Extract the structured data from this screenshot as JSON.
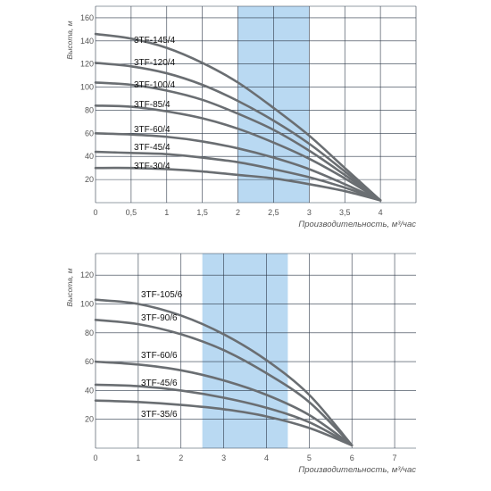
{
  "colors": {
    "curve": "#6a6e72",
    "grid": "#2f3a4a",
    "band": "#b9d9f2",
    "label": "#111111",
    "tick": "#555555"
  },
  "chart_data": [
    {
      "type": "line",
      "title": "",
      "ylabel": "Высота, м",
      "xlabel": "Производительность, м³/час",
      "xlim": [
        0,
        4.5
      ],
      "ylim": [
        0,
        170
      ],
      "xticks": [
        0,
        0.5,
        1,
        1.5,
        2,
        2.5,
        3,
        3.5,
        4
      ],
      "xtick_labels": [
        "0",
        "0,5",
        "1",
        "1,5",
        "2",
        "2,5",
        "3",
        "3,5",
        "4"
      ],
      "yticks": [
        20,
        40,
        60,
        80,
        100,
        120,
        140,
        160
      ],
      "ytick_labels": [
        "20",
        "40",
        "60",
        "80",
        "100",
        "120",
        "140",
        "160"
      ],
      "highlight_band": [
        2,
        3
      ],
      "grid": true,
      "series": [
        {
          "name": "3TF-145/4",
          "x": [
            0,
            0.5,
            1,
            1.5,
            2,
            2.5,
            3,
            3.5,
            4
          ],
          "y": [
            146,
            142,
            134,
            121,
            104,
            82,
            58,
            30,
            2
          ]
        },
        {
          "name": "3TF-120/4",
          "x": [
            0,
            0.5,
            1,
            1.5,
            2,
            2.5,
            3,
            3.5,
            4
          ],
          "y": [
            121,
            118,
            112,
            102,
            88,
            71,
            51,
            27,
            2
          ]
        },
        {
          "name": "3TF-100/4",
          "x": [
            0,
            0.5,
            1,
            1.5,
            2,
            2.5,
            3,
            3.5,
            4
          ],
          "y": [
            104,
            102,
            97,
            89,
            77,
            63,
            45,
            24,
            2
          ]
        },
        {
          "name": "3TF-85/4",
          "x": [
            0,
            0.5,
            1,
            1.5,
            2,
            2.5,
            3,
            3.5,
            4
          ],
          "y": [
            84,
            83,
            79,
            73,
            64,
            52,
            38,
            21,
            2
          ]
        },
        {
          "name": "3TF-60/4",
          "x": [
            0,
            0.5,
            1,
            1.5,
            2,
            2.5,
            3,
            3.5,
            4
          ],
          "y": [
            60,
            59,
            57,
            53,
            47,
            39,
            29,
            16,
            2
          ]
        },
        {
          "name": "3TF-45/4",
          "x": [
            0,
            0.5,
            1,
            1.5,
            2,
            2.5,
            3,
            3.5,
            4
          ],
          "y": [
            44,
            43,
            42,
            39,
            35,
            29,
            22,
            13,
            2
          ]
        },
        {
          "name": "3TF-30/4",
          "x": [
            0,
            0.5,
            1,
            1.5,
            2,
            2.5,
            3,
            3.5,
            4
          ],
          "y": [
            30,
            30,
            29,
            27,
            24,
            21,
            16,
            10,
            2
          ]
        }
      ]
    },
    {
      "type": "line",
      "title": "",
      "ylabel": "Высота, м",
      "xlabel": "Производительность, м³/час",
      "xlim": [
        0,
        7.5
      ],
      "ylim": [
        0,
        135
      ],
      "xticks": [
        0,
        1,
        2,
        3,
        4,
        5,
        6,
        7
      ],
      "xtick_labels": [
        "0",
        "1",
        "2",
        "3",
        "4",
        "5",
        "6",
        "7"
      ],
      "yticks": [
        20,
        40,
        60,
        80,
        100,
        120
      ],
      "ytick_labels": [
        "20",
        "40",
        "60",
        "80",
        "100",
        "120"
      ],
      "highlight_band": [
        2.5,
        4.5
      ],
      "grid": true,
      "series": [
        {
          "name": "3TF-105/6",
          "x": [
            0,
            1,
            2,
            3,
            4,
            5,
            6
          ],
          "y": [
            103,
            100,
            92,
            79,
            61,
            37,
            2
          ]
        },
        {
          "name": "3TF-90/6",
          "x": [
            0,
            1,
            2,
            3,
            4,
            5,
            6
          ],
          "y": [
            89,
            86,
            79,
            68,
            52,
            32,
            2
          ]
        },
        {
          "name": "3TF-60/6",
          "x": [
            0,
            1,
            2,
            3,
            4,
            5,
            6
          ],
          "y": [
            60,
            58,
            54,
            47,
            37,
            23,
            2
          ]
        },
        {
          "name": "3TF-45/6",
          "x": [
            0,
            1,
            2,
            3,
            4,
            5,
            6
          ],
          "y": [
            44,
            43,
            40,
            35,
            28,
            18,
            2
          ]
        },
        {
          "name": "3TF-35/6",
          "x": [
            0,
            1,
            2,
            3,
            4,
            5,
            6
          ],
          "y": [
            33,
            32,
            30,
            27,
            22,
            14,
            2
          ]
        }
      ]
    }
  ]
}
